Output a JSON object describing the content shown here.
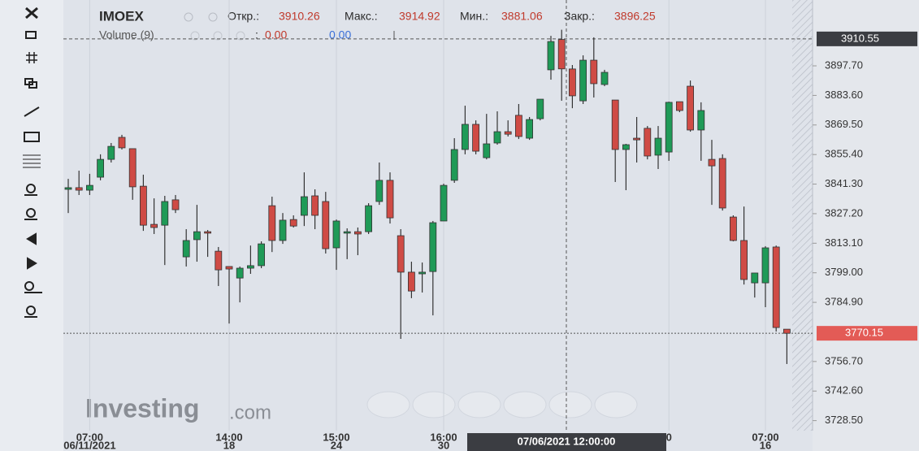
{
  "chart_data": {
    "type": "candlestick",
    "title": "IMOEX",
    "header_labels": [
      "Откр.:",
      "Макс.:",
      "Мин.:",
      "Закр.:"
    ],
    "volume_label": "Volume (9)",
    "volume_separator": ":",
    "volume_values": [
      "0.00",
      "0.00"
    ],
    "watermark": [
      "Investing",
      ".com"
    ],
    "crosshair_label": "07/06/2021 12:00:00",
    "crosshair_price": 3910.55,
    "last_price": 3770.15,
    "up_color": "#1f9a57",
    "down_color": "#cf4b45",
    "grid": "x",
    "categories": [
      null,
      null,
      "07:00",
      null,
      null,
      null,
      null,
      null,
      null,
      null,
      null,
      null,
      null,
      null,
      null,
      "14:00",
      null,
      null,
      null,
      null,
      null,
      null,
      null,
      null,
      null,
      "15:00",
      null,
      null,
      null,
      null,
      null,
      null,
      null,
      null,
      null,
      "16:00",
      null,
      null,
      null,
      null,
      null,
      null,
      null,
      null,
      null,
      null,
      null,
      null,
      null,
      null,
      null,
      null,
      null,
      null,
      null,
      null,
      "0",
      null,
      null,
      null,
      null,
      null,
      null,
      null,
      null,
      "07:00",
      null,
      null
    ],
    "dates": [
      null,
      null,
      "06/11/2021",
      null,
      null,
      null,
      null,
      null,
      null,
      null,
      null,
      null,
      null,
      null,
      null,
      "18",
      null,
      null,
      null,
      null,
      null,
      null,
      null,
      null,
      null,
      "24",
      null,
      null,
      null,
      null,
      null,
      null,
      null,
      null,
      null,
      "30",
      null,
      null,
      null,
      null,
      null,
      null,
      null,
      null,
      null,
      null,
      null,
      null,
      null,
      null,
      null,
      null,
      null,
      null,
      null,
      null,
      null,
      null,
      null,
      null,
      null,
      null,
      null,
      null,
      null,
      "16",
      null,
      null
    ],
    "open": [
      3838.8,
      3839.6,
      3838.4,
      3844.6,
      3853.1,
      3863.6,
      3858.2,
      3840.3,
      3822.1,
      3821.7,
      3833.8,
      3806.6,
      3814.8,
      3818.6,
      3809.3,
      3802.0,
      3796.5,
      3801.2,
      3802.4,
      3831.0,
      3814.4,
      3824.4,
      3826.4,
      3835.7,
      3833.0,
      3810.9,
      3817.9,
      3818.6,
      3818.6,
      3833.0,
      3843.1,
      3816.7,
      3799.3,
      3798.5,
      3799.6,
      3823.7,
      3843.1,
      3857.8,
      3869.8,
      3853.9,
      3860.9,
      3866.3,
      3874.1,
      3863.2,
      3872.5,
      3895.8,
      3910.26,
      3896.2,
      3881.0,
      3900.4,
      3888.8,
      3881.4,
      3857.8,
      3863.2,
      3867.9,
      3855.1,
      3856.6,
      3880.6,
      3888.0,
      3867.1,
      3853.1,
      3853.5,
      3825.6,
      3814.4,
      3794.2,
      3794.2,
      3811.3,
      3772.1
    ],
    "high": [
      3843.8,
      3847.7,
      3846.2,
      3855.5,
      3860.9,
      3864.8,
      3858.2,
      3845.8,
      3834.5,
      3835.7,
      3836.1,
      3819.8,
      3831.4,
      3819.4,
      3811.3,
      3802.0,
      3802.0,
      3812.0,
      3814.0,
      3835.3,
      3827.5,
      3826.4,
      3846.9,
      3838.8,
      3837.6,
      3824.4,
      3820.2,
      3820.6,
      3832.2,
      3851.6,
      3846.9,
      3819.8,
      3804.3,
      3803.9,
      3823.7,
      3841.5,
      3863.2,
      3878.7,
      3871.7,
      3874.8,
      3876.0,
      3871.7,
      3879.5,
      3873.3,
      3881.8,
      3912.0,
      3914.92,
      3898.1,
      3902.7,
      3911.3,
      3895.8,
      3881.4,
      3860.5,
      3873.3,
      3869.0,
      3869.0,
      3880.6,
      3880.6,
      3890.7,
      3880.3,
      3862.4,
      3855.5,
      3826.4,
      3830.6,
      3798.9,
      3811.7,
      3812.0,
      3772.1
    ],
    "low": [
      3827.5,
      3836.1,
      3836.1,
      3843.1,
      3851.6,
      3857.8,
      3833.8,
      3819.0,
      3817.5,
      3802.7,
      3827.5,
      3802.0,
      3804.3,
      3806.6,
      3792.7,
      3774.8,
      3784.9,
      3798.5,
      3801.2,
      3808.9,
      3812.8,
      3820.6,
      3821.3,
      3819.8,
      3808.2,
      3800.4,
      3805.5,
      3807.4,
      3817.5,
      3831.4,
      3822.5,
      3767.5,
      3786.9,
      3789.6,
      3778.7,
      3823.7,
      3841.9,
      3855.5,
      3855.5,
      3853.1,
      3860.1,
      3864.0,
      3862.8,
      3862.4,
      3871.7,
      3891.1,
      3881.06,
      3877.5,
      3879.5,
      3882.6,
      3888.0,
      3842.3,
      3838.4,
      3851.6,
      3853.1,
      3848.5,
      3852.4,
      3875.6,
      3866.3,
      3852.4,
      3831.4,
      3828.7,
      3814.0,
      3793.4,
      3787.2,
      3782.6,
      3771.0,
      3755.5
    ],
    "close": [
      3839.6,
      3838.4,
      3840.7,
      3853.1,
      3859.3,
      3858.6,
      3840.0,
      3821.7,
      3820.6,
      3833.0,
      3829.1,
      3814.4,
      3818.6,
      3817.9,
      3800.4,
      3800.8,
      3801.2,
      3802.4,
      3812.8,
      3814.4,
      3824.1,
      3821.3,
      3835.3,
      3826.4,
      3810.5,
      3823.7,
      3818.6,
      3817.5,
      3831.0,
      3843.1,
      3825.2,
      3799.3,
      3790.3,
      3799.3,
      3822.9,
      3840.7,
      3857.8,
      3869.8,
      3857.0,
      3860.5,
      3866.3,
      3865.1,
      3864.0,
      3872.1,
      3881.8,
      3909.3,
      3896.25,
      3883.4,
      3900.4,
      3889.2,
      3894.6,
      3857.8,
      3860.1,
      3862.4,
      3854.7,
      3863.2,
      3880.3,
      3876.4,
      3867.1,
      3876.4,
      3850.0,
      3829.9,
      3814.4,
      3795.8,
      3798.9,
      3810.9,
      3772.9,
      3770.15
    ],
    "ylim": [
      3723.7,
      3929.1
    ],
    "yticks": [
      {
        "value": 3728.5,
        "label": "3728.50"
      },
      {
        "value": 3742.6,
        "label": "3742.60"
      },
      {
        "value": 3756.7,
        "label": "3756.70"
      },
      {
        "value": 3784.9,
        "label": "3784.90"
      },
      {
        "value": 3799,
        "label": "3799.00"
      },
      {
        "value": 3813.1,
        "label": "3813.10"
      },
      {
        "value": 3827.2,
        "label": "3827.20"
      },
      {
        "value": 3841.3,
        "label": "3841.30"
      },
      {
        "value": 3855.4,
        "label": "3855.40"
      },
      {
        "value": 3869.5,
        "label": "3869.50"
      },
      {
        "value": 3883.6,
        "label": "3883.60"
      },
      {
        "value": 3897.7,
        "label": "3897.70"
      }
    ]
  }
}
